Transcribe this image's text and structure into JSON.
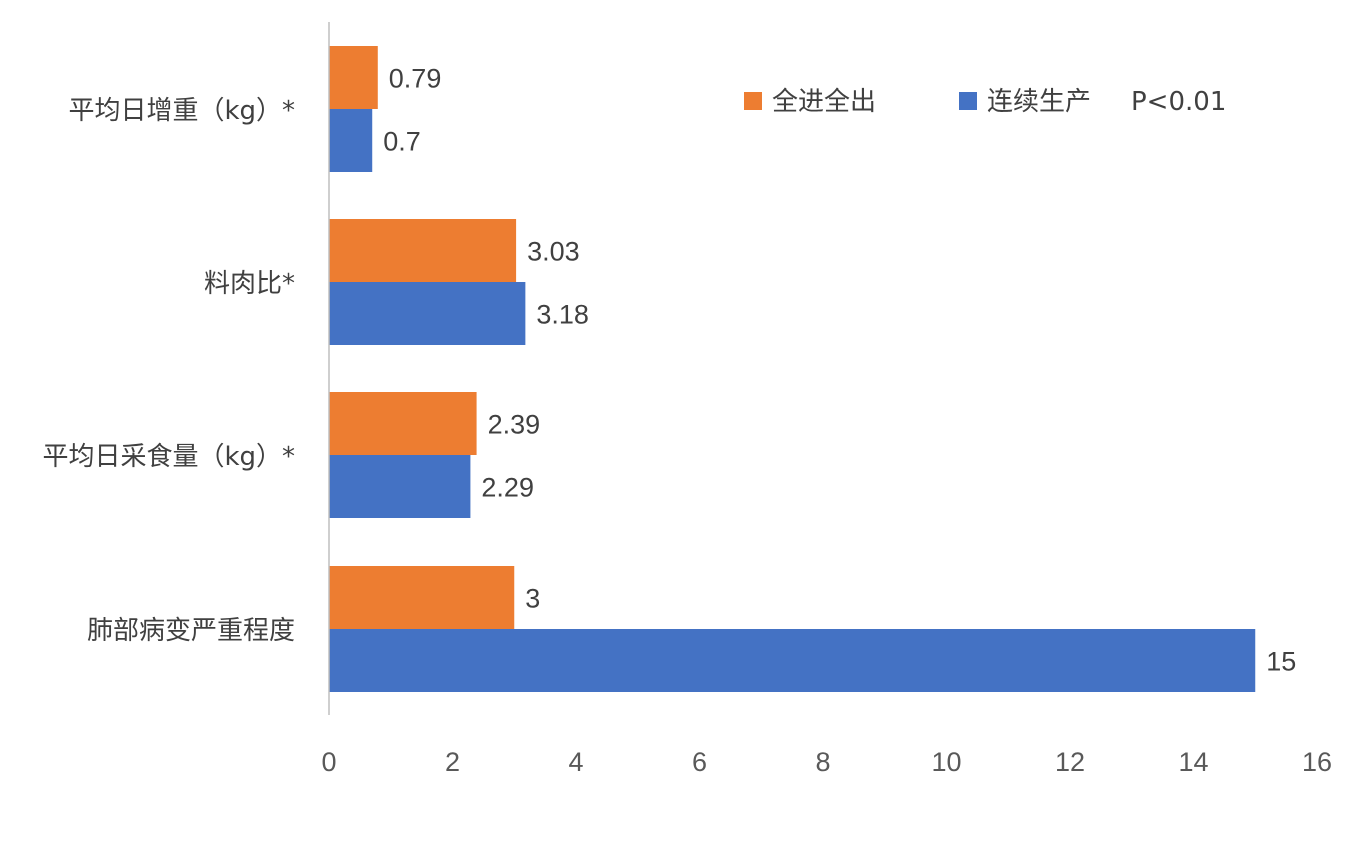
{
  "chart_data": {
    "type": "bar",
    "orientation": "horizontal",
    "categories": [
      "平均日增重（kg）*",
      "料肉比*",
      "平均日采食量（kg）*",
      "肺部病变严重程度"
    ],
    "series": [
      {
        "name": "全进全出",
        "color": "#ED7D31",
        "values": [
          0.79,
          3.03,
          2.39,
          3
        ]
      },
      {
        "name": "连续生产",
        "color": "#4472C4",
        "values": [
          0.7,
          3.18,
          2.29,
          15
        ]
      }
    ],
    "data_labels": [
      [
        "0.79",
        "3.03",
        "2.39",
        "3"
      ],
      [
        "0.7",
        "3.18",
        "2.29",
        "15"
      ]
    ],
    "xlim": [
      0,
      16
    ],
    "x_ticks": [
      "0",
      "2",
      "4",
      "6",
      "8",
      "10",
      "12",
      "14",
      "16"
    ],
    "legend": {
      "position": "top-right",
      "items": [
        "全进全出",
        "连续生产"
      ],
      "note": "P<0.01"
    },
    "grid": false,
    "axis_color": "#BFBFBF"
  }
}
